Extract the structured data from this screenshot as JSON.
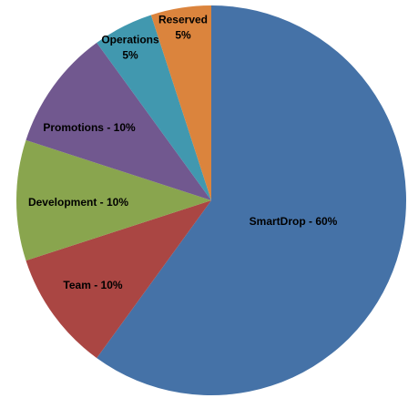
{
  "chart_data": {
    "type": "pie",
    "title": "",
    "start": "top",
    "direction": "clockwise",
    "legend": "none",
    "slices": [
      {
        "label": "SmartDrop",
        "value": 60,
        "color": "#4572A7",
        "text_lines": [
          "SmartDrop - 60%"
        ]
      },
      {
        "label": "Team",
        "value": 10,
        "color": "#AA4643",
        "text_lines": [
          "Team - 10%"
        ]
      },
      {
        "label": "Development",
        "value": 10,
        "color": "#89A54E",
        "text_lines": [
          "Development - 10%"
        ]
      },
      {
        "label": "Promotions",
        "value": 10,
        "color": "#71588F",
        "text_lines": [
          "Promotions - 10%"
        ]
      },
      {
        "label": "Operations",
        "value": 5,
        "color": "#4198AF",
        "text_lines": [
          "Operations",
          "5%"
        ]
      },
      {
        "label": "Reserved",
        "value": 5,
        "color": "#DB843D",
        "text_lines": [
          "Reserved",
          "5%"
        ]
      }
    ]
  }
}
